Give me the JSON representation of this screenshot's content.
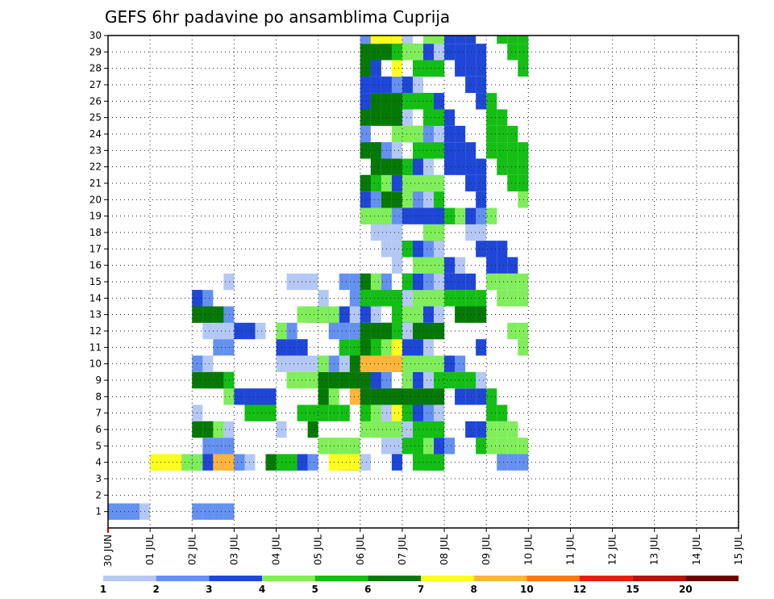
{
  "chart_data": {
    "type": "heatmap",
    "title": "GEFS 6hr padavine po ansamblima Cuprija",
    "x_tick_labels": [
      "30 JUN",
      "01 JUL",
      "02 JUL",
      "03 JUL",
      "04 JUL",
      "05 JUL",
      "06 JUL",
      "07 JUL",
      "08 JUL",
      "09 JUL",
      "10 JUL",
      "11 JUL",
      "12 JUL",
      "13 JUL",
      "14 JUL",
      "15 JUL"
    ],
    "y_tick_labels": [
      "1",
      "2",
      "3",
      "4",
      "5",
      "6",
      "7",
      "8",
      "9",
      "10",
      "11",
      "12",
      "13",
      "14",
      "15",
      "16",
      "17",
      "18",
      "19",
      "20",
      "21",
      "22",
      "23",
      "24",
      "25",
      "26",
      "27",
      "28",
      "29",
      "30"
    ],
    "x_range_days": [
      0,
      15
    ],
    "y_range": [
      0,
      30
    ],
    "grid": true,
    "legend": {
      "placement": "bottom",
      "labels": [
        "1",
        "2",
        "3",
        "4",
        "5",
        "6",
        "7",
        "8",
        "10",
        "12",
        "15",
        "20"
      ],
      "colors": [
        "#b4c8f5",
        "#6490f0",
        "#1e46d7",
        "#80ee5a",
        "#14be14",
        "#067806",
        "#ffff1e",
        "#ffb43c",
        "#ff7814",
        "#e61e0a",
        "#b41400",
        "#6e0000"
      ]
    },
    "cells": [
      [
        1,
        0,
        0
      ],
      [
        1,
        0,
        1
      ],
      [
        4,
        1,
        1
      ],
      [
        4,
        1,
        3
      ],
      [
        4,
        1,
        6
      ],
      [
        1,
        2,
        0
      ],
      [
        1,
        2,
        1
      ],
      [
        4,
        2,
        0
      ],
      [
        4,
        2,
        2
      ],
      [
        4,
        2,
        3
      ],
      [
        4,
        2,
        5
      ],
      [
        4,
        2,
        7
      ],
      [
        5,
        2,
        1
      ],
      [
        6,
        2,
        0
      ],
      [
        6,
        2,
        3
      ],
      [
        6,
        2,
        5
      ],
      [
        7,
        2,
        0
      ],
      [
        8,
        2,
        3
      ],
      [
        9,
        2,
        2
      ],
      [
        9,
        2,
        3
      ],
      [
        9,
        2,
        4
      ],
      [
        9,
        2,
        5
      ],
      [
        10,
        2,
        0
      ],
      [
        10,
        2,
        1
      ],
      [
        11,
        2,
        0
      ],
      [
        11,
        2,
        1
      ],
      [
        12,
        2,
        0
      ],
      [
        13,
        2,
        1
      ],
      [
        13,
        2,
        5
      ],
      [
        14,
        2,
        1
      ],
      [
        14,
        2,
        2
      ],
      [
        15,
        2,
        0
      ],
      [
        4,
        3,
        0
      ],
      [
        4,
        3,
        1
      ],
      [
        4,
        3,
        5
      ],
      [
        7,
        3,
        0
      ],
      [
        7,
        3,
        4
      ],
      [
        8,
        3,
        2
      ],
      [
        12,
        3,
        0
      ],
      [
        12,
        3,
        2
      ],
      [
        4,
        4,
        1
      ],
      [
        4,
        4,
        2
      ],
      [
        4,
        4,
        4
      ],
      [
        6,
        4,
        0
      ],
      [
        6,
        4,
        5
      ],
      [
        7,
        4,
        4
      ],
      [
        9,
        4,
        3
      ],
      [
        10,
        4,
        0
      ],
      [
        11,
        4,
        2
      ],
      [
        12,
        4,
        1
      ],
      [
        12,
        4,
        3
      ],
      [
        13,
        4,
        2
      ],
      [
        13,
        4,
        3
      ],
      [
        15,
        4,
        0
      ],
      [
        4,
        5,
        4
      ],
      [
        4,
        5,
        5
      ],
      [
        4,
        5,
        6
      ],
      [
        5,
        5,
        3
      ],
      [
        7,
        5,
        4
      ],
      [
        8,
        5,
        3
      ],
      [
        8,
        5,
        5
      ],
      [
        8,
        5,
        7
      ],
      [
        9,
        5,
        3
      ],
      [
        9,
        5,
        4
      ],
      [
        9,
        5,
        5
      ],
      [
        10,
        5,
        0
      ],
      [
        10,
        5,
        1
      ],
      [
        10,
        5,
        3
      ],
      [
        10,
        5,
        5
      ],
      [
        11,
        5,
        4
      ],
      [
        12,
        5,
        1
      ],
      [
        13,
        5,
        0
      ],
      [
        13,
        5,
        2
      ],
      [
        13,
        5,
        3
      ],
      [
        14,
        5,
        0
      ],
      [
        14,
        5,
        1
      ],
      [
        15,
        5,
        1
      ],
      [
        4,
        6,
        0
      ],
      [
        4,
        6,
        2
      ],
      [
        5,
        6,
        0
      ],
      [
        6,
        6,
        0
      ],
      [
        6,
        6,
        3
      ],
      [
        7,
        6,
        0
      ],
      [
        7,
        6,
        3
      ],
      [
        7,
        6,
        4
      ],
      [
        7,
        6,
        6
      ],
      [
        8,
        6,
        0
      ],
      [
        8,
        6,
        2
      ],
      [
        8,
        6,
        5
      ],
      [
        9,
        6,
        1
      ],
      [
        9,
        6,
        2
      ],
      [
        9,
        6,
        5
      ],
      [
        10,
        6,
        0
      ],
      [
        10,
        6,
        2
      ],
      [
        10,
        6,
        6
      ],
      [
        10,
        6,
        7
      ],
      [
        11,
        6,
        3
      ],
      [
        11,
        6,
        4
      ],
      [
        11,
        6,
        5
      ],
      [
        11,
        6,
        6
      ],
      [
        12,
        6,
        2
      ],
      [
        12,
        6,
        3
      ],
      [
        12,
        6,
        4
      ],
      [
        12,
        6,
        5
      ],
      [
        13,
        6,
        0
      ],
      [
        13,
        6,
        2
      ],
      [
        13,
        6,
        4
      ],
      [
        14,
        6,
        0
      ],
      [
        14,
        6,
        2
      ],
      [
        14,
        6,
        4
      ],
      [
        15,
        6,
        1
      ],
      [
        15,
        6,
        3
      ],
      [
        15,
        6,
        5
      ],
      [
        16,
        6,
        0
      ],
      [
        17,
        6,
        0
      ],
      [
        18,
        6,
        0
      ],
      [
        19,
        6,
        1
      ],
      [
        19,
        6,
        3
      ],
      [
        20,
        6,
        1
      ],
      [
        20,
        6,
        2
      ],
      [
        20,
        6,
        3
      ],
      [
        20,
        6,
        5
      ],
      [
        21,
        6,
        0
      ],
      [
        21,
        6,
        2
      ],
      [
        21,
        6,
        3
      ],
      [
        21,
        6,
        4
      ],
      [
        21,
        6,
        5
      ],
      [
        22,
        6,
        2
      ],
      [
        22,
        6,
        3
      ],
      [
        22,
        6,
        5
      ],
      [
        23,
        6,
        0
      ],
      [
        23,
        6,
        1
      ],
      [
        23,
        6,
        5
      ],
      [
        24,
        6,
        1
      ],
      [
        24,
        6,
        3
      ],
      [
        25,
        6,
        1
      ],
      [
        25,
        6,
        3
      ],
      [
        25,
        6,
        5
      ],
      [
        26,
        6,
        0
      ],
      [
        26,
        6,
        1
      ],
      [
        26,
        6,
        2
      ],
      [
        26,
        6,
        3
      ],
      [
        26,
        6,
        4
      ],
      [
        26,
        6,
        5
      ],
      [
        27,
        6,
        1
      ],
      [
        27,
        6,
        2
      ],
      [
        28,
        6,
        2
      ],
      [
        28,
        6,
        5
      ],
      [
        28,
        6,
        6
      ],
      [
        29,
        6,
        2
      ],
      [
        29,
        6,
        3
      ],
      [
        29,
        6,
        4
      ],
      [
        29,
        6,
        5
      ],
      [
        30,
        6,
        0
      ],
      [
        30,
        6,
        1
      ],
      [
        30,
        6,
        2
      ],
      [
        30,
        6,
        5
      ],
      [
        30,
        6,
        6
      ],
      [
        4,
        7,
        0
      ],
      [
        4,
        7,
        2
      ],
      [
        4,
        7,
        4
      ],
      [
        5,
        7,
        2
      ],
      [
        5,
        7,
        3
      ],
      [
        5,
        7,
        4
      ],
      [
        6,
        7,
        0
      ],
      [
        6,
        7,
        1
      ],
      [
        6,
        7,
        2
      ],
      [
        6,
        7,
        4
      ],
      [
        7,
        7,
        0
      ],
      [
        7,
        7,
        1
      ],
      [
        7,
        7,
        2
      ],
      [
        7,
        7,
        4
      ],
      [
        8,
        7,
        0
      ],
      [
        8,
        7,
        1
      ],
      [
        8,
        7,
        3
      ],
      [
        8,
        7,
        5
      ],
      [
        9,
        7,
        0
      ],
      [
        9,
        7,
        2
      ],
      [
        9,
        7,
        3
      ],
      [
        9,
        7,
        4
      ],
      [
        10,
        7,
        0
      ],
      [
        10,
        7,
        1
      ],
      [
        10,
        7,
        3
      ],
      [
        11,
        7,
        0
      ],
      [
        11,
        7,
        2
      ],
      [
        12,
        7,
        0
      ],
      [
        12,
        7,
        2
      ],
      [
        12,
        7,
        3
      ],
      [
        12,
        7,
        5
      ],
      [
        13,
        7,
        0
      ],
      [
        13,
        7,
        2
      ],
      [
        13,
        7,
        3
      ],
      [
        14,
        7,
        0
      ],
      [
        14,
        7,
        1
      ],
      [
        14,
        7,
        2
      ],
      [
        14,
        7,
        3
      ],
      [
        15,
        7,
        0
      ],
      [
        15,
        7,
        1
      ],
      [
        15,
        7,
        2
      ],
      [
        15,
        7,
        4
      ],
      [
        16,
        7,
        0
      ],
      [
        16,
        7,
        1
      ],
      [
        16,
        7,
        3
      ],
      [
        17,
        7,
        0
      ],
      [
        17,
        7,
        1
      ],
      [
        17,
        7,
        2
      ],
      [
        17,
        7,
        4
      ],
      [
        18,
        7,
        1
      ],
      [
        18,
        7,
        3
      ],
      [
        19,
        7,
        0
      ],
      [
        19,
        7,
        2
      ],
      [
        20,
        7,
        0
      ],
      [
        20,
        7,
        1
      ],
      [
        20,
        7,
        3
      ],
      [
        20,
        7,
        4
      ],
      [
        21,
        7,
        0
      ],
      [
        21,
        7,
        1
      ],
      [
        21,
        7,
        3
      ],
      [
        22,
        7,
        0
      ],
      [
        22,
        7,
        2
      ],
      [
        22,
        7,
        4
      ],
      [
        23,
        7,
        0
      ],
      [
        23,
        7,
        2
      ],
      [
        23,
        7,
        4
      ],
      [
        24,
        7,
        0
      ],
      [
        24,
        7,
        1
      ],
      [
        24,
        7,
        3
      ],
      [
        25,
        7,
        0
      ],
      [
        25,
        7,
        2
      ],
      [
        25,
        7,
        4
      ],
      [
        26,
        7,
        1
      ],
      [
        26,
        7,
        2
      ],
      [
        26,
        7,
        4
      ],
      [
        27,
        7,
        0
      ],
      [
        27,
        7,
        2
      ],
      [
        28,
        7,
        1
      ],
      [
        28,
        7,
        2
      ],
      [
        28,
        7,
        4
      ],
      [
        29,
        7,
        0
      ],
      [
        29,
        7,
        2
      ],
      [
        29,
        7,
        3
      ],
      [
        30,
        7,
        0
      ],
      [
        30,
        7,
        1
      ],
      [
        30,
        7,
        3
      ],
      [
        5,
        8,
        1
      ],
      [
        5,
        8,
        4
      ],
      [
        6,
        8,
        2
      ],
      [
        8,
        8,
        2
      ],
      [
        9,
        8,
        0
      ],
      [
        9,
        8,
        4
      ],
      [
        10,
        8,
        1
      ],
      [
        10,
        8,
        2
      ],
      [
        11,
        8,
        2
      ],
      [
        13,
        8,
        3
      ],
      [
        13,
        8,
        5
      ],
      [
        14,
        8,
        4
      ],
      [
        15,
        8,
        2
      ],
      [
        16,
        8,
        0
      ],
      [
        16,
        8,
        2
      ],
      [
        17,
        8,
        2
      ],
      [
        18,
        8,
        0
      ],
      [
        19,
        8,
        0
      ],
      [
        19,
        8,
        1
      ],
      [
        19,
        8,
        2
      ],
      [
        19,
        8,
        3
      ],
      [
        19,
        8,
        4
      ],
      [
        20,
        8,
        2
      ],
      [
        21,
        8,
        2
      ],
      [
        22,
        8,
        0
      ],
      [
        22,
        8,
        2
      ],
      [
        23,
        8,
        2
      ],
      [
        24,
        8,
        2
      ],
      [
        25,
        8,
        2
      ],
      [
        26,
        8,
        2
      ],
      [
        27,
        8,
        2
      ],
      [
        28,
        8,
        2
      ],
      [
        29,
        8,
        2
      ],
      [
        30,
        8,
        2
      ],
      [
        4,
        9,
        1
      ],
      [
        5,
        9,
        3
      ],
      [
        6,
        9,
        3
      ],
      [
        7,
        9,
        4
      ],
      [
        8,
        9,
        4
      ],
      [
        11,
        9,
        3
      ],
      [
        12,
        9,
        3
      ],
      [
        14,
        9,
        3
      ],
      [
        15,
        9,
        3
      ],
      [
        16,
        9,
        2
      ],
      [
        17,
        9,
        2
      ],
      [
        19,
        9,
        3
      ],
      [
        20,
        9,
        3
      ],
      [
        21,
        9,
        4
      ],
      [
        22,
        9,
        4
      ],
      [
        23,
        9,
        4
      ],
      [
        24,
        9,
        4
      ],
      [
        25,
        9,
        4
      ],
      [
        26,
        9,
        4
      ],
      [
        28,
        9,
        4
      ],
      [
        29,
        9,
        4
      ],
      [
        30,
        9,
        4
      ]
    ]
  }
}
